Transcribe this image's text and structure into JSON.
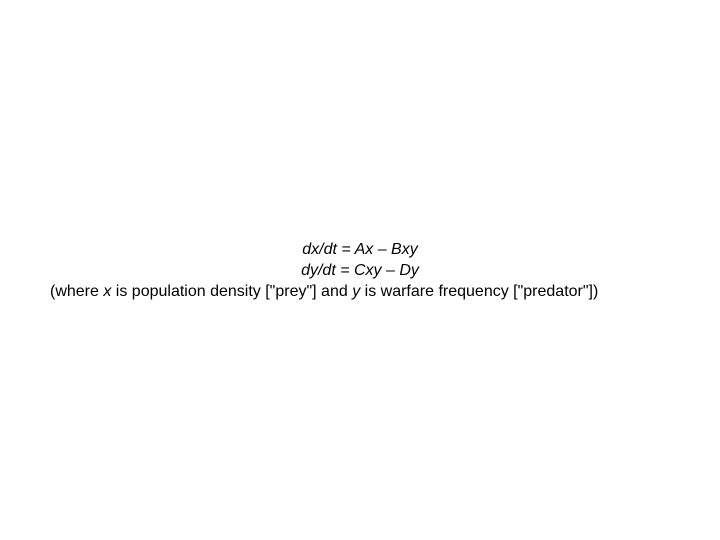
{
  "equations": {
    "line1": "dx/dt = Ax – Bxy",
    "line2": "dy/dt = Cxy – Dy"
  },
  "explanation": {
    "part1": "(where ",
    "var1": "x",
    "part2": " is population density [\"prey\"] and ",
    "var2": "y",
    "part3": " is warfare frequency [\"predator\"])"
  },
  "styling": {
    "font_size": 16,
    "text_color": "#000000",
    "background_color": "#ffffff",
    "font_family": "Arial"
  }
}
